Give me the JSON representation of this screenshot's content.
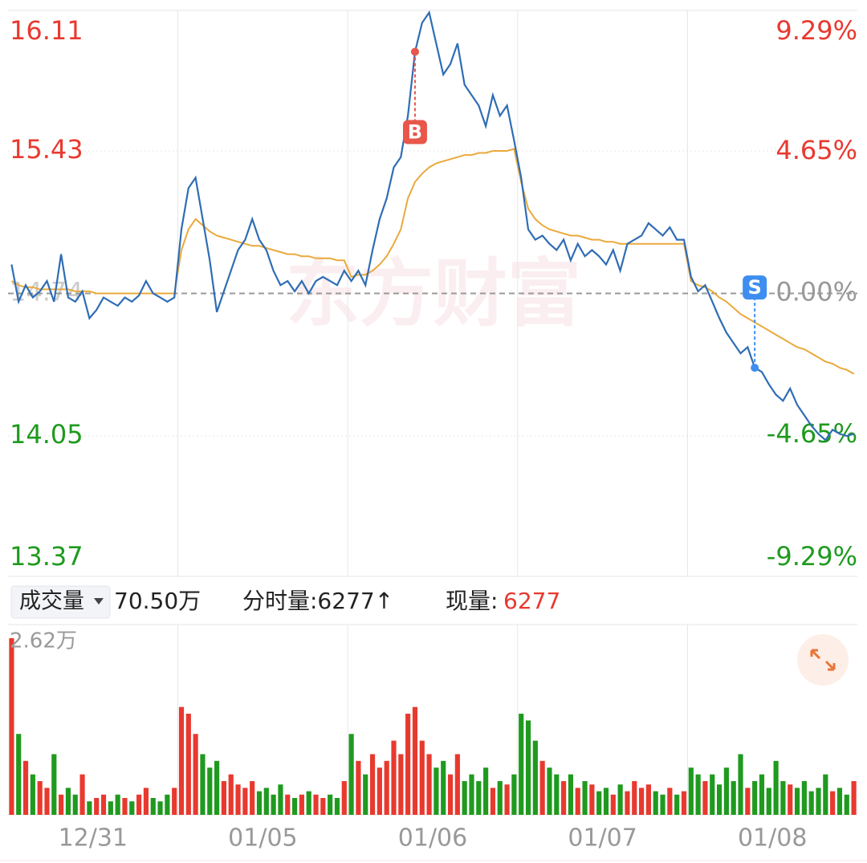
{
  "chart_data": {
    "type": "line",
    "watermark": "东方财富",
    "days": [
      "12/31",
      "01/05",
      "01/06",
      "01/07",
      "01/08"
    ],
    "ylim": [
      13.37,
      16.11
    ],
    "yticks": [
      16.11,
      15.43,
      14.74,
      14.05,
      13.37
    ],
    "y2lim": [
      -9.29,
      9.29
    ],
    "y2ticks": [
      {
        "value": 9.29,
        "label": "9.29%"
      },
      {
        "value": 4.65,
        "label": "4.65%"
      },
      {
        "value": 0,
        "label": "0.00%"
      },
      {
        "value": -4.65,
        "label": "-4.65%"
      },
      {
        "value": -9.29,
        "label": "-9.29%"
      }
    ],
    "up_color": "#e8392f",
    "down_color": "#1f9a1f",
    "flat_color": "#999999",
    "series": [
      {
        "color": "#2f6db5",
        "values": [
          14.88,
          14.7,
          14.78,
          14.72,
          14.75,
          14.8,
          14.7,
          14.93,
          14.72,
          14.7,
          14.75,
          14.62,
          14.66,
          14.72,
          14.7,
          14.68,
          14.72,
          14.7,
          14.73,
          14.8,
          14.74,
          14.72,
          14.7,
          14.72,
          15.05,
          15.25,
          15.3,
          15.1,
          14.9,
          14.65,
          14.75,
          14.85,
          14.95,
          15.0,
          15.1,
          15.0,
          14.95,
          14.85,
          14.78,
          14.8,
          14.75,
          14.8,
          14.74,
          14.8,
          14.82,
          14.8,
          14.78,
          14.85,
          14.8,
          14.85,
          14.78,
          14.95,
          15.1,
          15.2,
          15.35,
          15.4,
          15.6,
          15.91,
          16.05,
          16.1,
          15.95,
          15.8,
          15.85,
          15.95,
          15.75,
          15.7,
          15.65,
          15.55,
          15.7,
          15.6,
          15.65,
          15.48,
          15.3,
          15.05,
          15.0,
          15.02,
          14.98,
          14.95,
          15.0,
          14.9,
          14.98,
          14.92,
          14.95,
          14.92,
          14.88,
          14.95,
          14.85,
          14.98,
          15.0,
          15.02,
          15.08,
          15.05,
          15.02,
          15.06,
          15.0,
          15.0,
          14.82,
          14.75,
          14.78,
          14.7,
          14.62,
          14.55,
          14.5,
          14.45,
          14.48,
          14.38,
          14.36,
          14.3,
          14.25,
          14.22,
          14.28,
          14.2,
          14.15,
          14.1,
          14.06,
          14.03,
          14.08,
          14.06,
          14.05,
          14.06
        ]
      },
      {
        "color": "#eaa93c",
        "values": [
          14.8,
          14.78,
          14.77,
          14.77,
          14.76,
          14.76,
          14.76,
          14.76,
          14.76,
          14.75,
          14.75,
          14.75,
          14.74,
          14.74,
          14.74,
          14.74,
          14.74,
          14.74,
          14.74,
          14.74,
          14.74,
          14.74,
          14.74,
          14.74,
          14.95,
          15.05,
          15.1,
          15.07,
          15.04,
          15.02,
          15.01,
          15.0,
          14.99,
          14.98,
          14.97,
          14.97,
          14.96,
          14.95,
          14.94,
          14.93,
          14.93,
          14.92,
          14.92,
          14.91,
          14.91,
          14.91,
          14.9,
          14.9,
          14.82,
          14.83,
          14.83,
          14.85,
          14.88,
          14.92,
          14.98,
          15.05,
          15.2,
          15.28,
          15.32,
          15.35,
          15.37,
          15.38,
          15.39,
          15.4,
          15.41,
          15.41,
          15.42,
          15.42,
          15.43,
          15.43,
          15.43,
          15.44,
          15.28,
          15.15,
          15.1,
          15.07,
          15.05,
          15.04,
          15.03,
          15.02,
          15.02,
          15.01,
          15.0,
          15.0,
          14.99,
          14.99,
          14.98,
          14.98,
          14.98,
          14.98,
          14.98,
          14.98,
          14.98,
          14.98,
          14.98,
          14.98,
          14.8,
          14.78,
          14.77,
          14.75,
          14.72,
          14.7,
          14.67,
          14.64,
          14.62,
          14.6,
          14.58,
          14.56,
          14.54,
          14.52,
          14.5,
          14.48,
          14.47,
          14.45,
          14.43,
          14.41,
          14.4,
          14.38,
          14.37,
          14.35
        ]
      }
    ],
    "markers": [
      {
        "label": "B",
        "index": 57,
        "value": 15.91,
        "color": "#e8574a"
      },
      {
        "label": "S",
        "index": 105,
        "value": 14.38,
        "color": "#3d8ef0"
      }
    ],
    "volume": {
      "header": "成交量",
      "total": "70.50万",
      "flow": "分时量:6277↑",
      "current_label": "现量:",
      "current": 6277,
      "ylim": [
        0,
        2.62
      ],
      "yticks": [
        {
          "value": 2.62,
          "label": "2.62万"
        }
      ],
      "values": [
        2.62,
        1.2,
        0.8,
        0.6,
        0.5,
        0.4,
        0.9,
        0.3,
        0.4,
        0.3,
        0.6,
        0.2,
        0.25,
        0.3,
        0.2,
        0.3,
        0.25,
        0.2,
        0.3,
        0.4,
        0.25,
        0.2,
        0.3,
        0.4,
        1.6,
        1.5,
        1.2,
        0.9,
        0.7,
        0.8,
        0.5,
        0.6,
        0.45,
        0.4,
        0.5,
        0.35,
        0.4,
        0.3,
        0.45,
        0.3,
        0.25,
        0.3,
        0.35,
        0.3,
        0.25,
        0.3,
        0.25,
        0.5,
        1.2,
        0.8,
        0.6,
        0.9,
        0.7,
        0.8,
        1.1,
        0.9,
        1.5,
        1.6,
        1.1,
        0.9,
        0.7,
        0.8,
        0.6,
        0.9,
        0.5,
        0.6,
        0.5,
        0.7,
        0.4,
        0.5,
        0.45,
        0.6,
        1.5,
        1.4,
        1.1,
        0.8,
        0.7,
        0.6,
        0.5,
        0.6,
        0.4,
        0.5,
        0.45,
        0.35,
        0.4,
        0.3,
        0.45,
        0.35,
        0.5,
        0.4,
        0.45,
        0.35,
        0.3,
        0.4,
        0.3,
        0.35,
        0.7,
        0.6,
        0.5,
        0.6,
        0.45,
        0.7,
        0.5,
        0.9,
        0.4,
        0.5,
        0.6,
        0.4,
        0.8,
        0.5,
        0.45,
        0.4,
        0.5,
        0.35,
        0.4,
        0.6,
        0.35,
        0.4,
        0.3,
        0.5
      ]
    }
  }
}
